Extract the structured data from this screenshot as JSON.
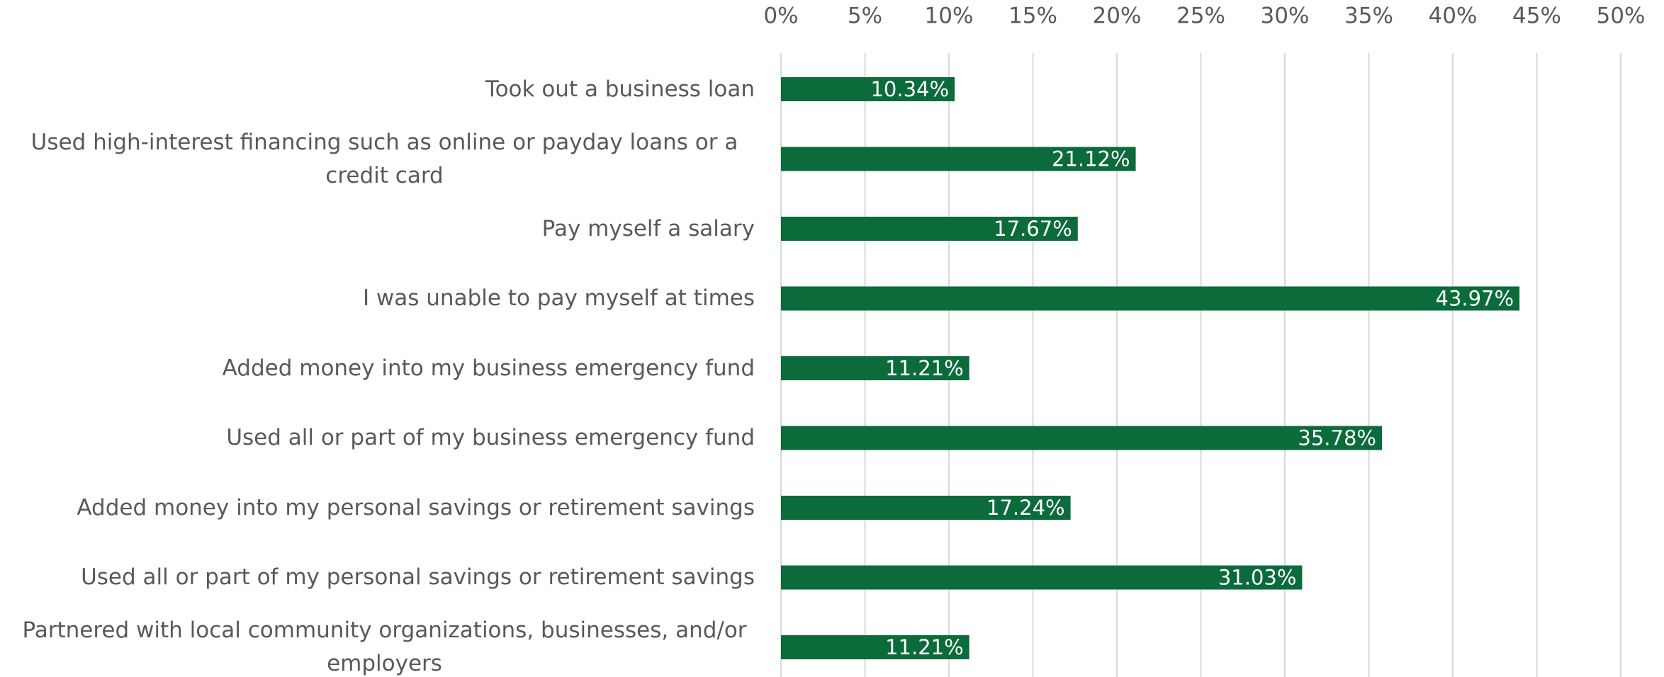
{
  "chart_data": {
    "type": "barh",
    "categories": [
      "Took out a business loan",
      "Used high-interest financing such as online or payday loans or a credit card",
      "Pay myself a salary",
      "I was unable to pay myself at times",
      "Added money into my business emergency fund",
      "Used all or part of my business emergency fund",
      "Added money into my personal savings or retirement savings",
      "Used all or part of my personal savings or retirement savings",
      "Partnered with local community organizations, businesses, and/or employers"
    ],
    "values": [
      10.34,
      21.12,
      17.67,
      43.97,
      11.21,
      35.78,
      17.24,
      31.03,
      11.21
    ],
    "value_labels": [
      "10.34%",
      "21.12%",
      "17.67%",
      "43.97%",
      "11.21%",
      "35.78%",
      "17.24%",
      "31.03%",
      "11.21%"
    ],
    "color": "#0b6b3a",
    "xlim": [
      0,
      50
    ],
    "xticks": [
      {
        "value": 0,
        "label": "0%"
      },
      {
        "value": 5,
        "label": "5%"
      },
      {
        "value": 10,
        "label": "10%"
      },
      {
        "value": 15,
        "label": "15%"
      },
      {
        "value": 20,
        "label": "20%"
      },
      {
        "value": 25,
        "label": "25%"
      },
      {
        "value": 30,
        "label": "30%"
      },
      {
        "value": 35,
        "label": "35%"
      },
      {
        "value": 40,
        "label": "40%"
      },
      {
        "value": 45,
        "label": "45%"
      },
      {
        "value": 50,
        "label": "50%"
      }
    ],
    "grid": true
  }
}
